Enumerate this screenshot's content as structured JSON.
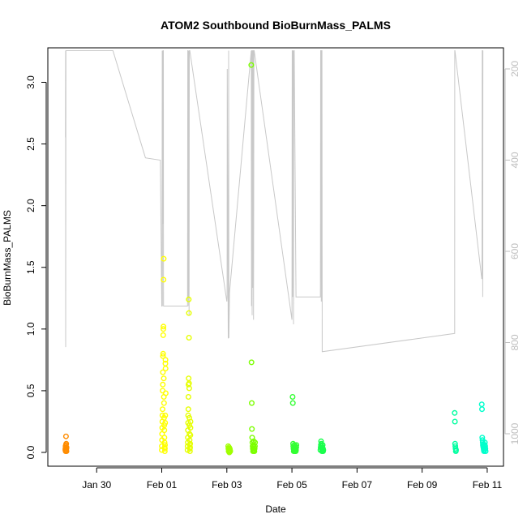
{
  "chart_data": {
    "type": "scatter",
    "title": "ATOM2 Southbound BioBurnMass_PALMS",
    "xlabel": "Date",
    "ylabel": "BioBurnMass_PALMS",
    "x_unit": "date",
    "xlim": [
      "2017-01-28T12:00",
      "2017-02-11T12:00"
    ],
    "ylim": [
      0,
      3.25
    ],
    "x_ticks": [
      {
        "date": "2017-01-30",
        "label": "Jan 30"
      },
      {
        "date": "2017-02-01",
        "label": "Feb 01"
      },
      {
        "date": "2017-02-03",
        "label": "Feb 03"
      },
      {
        "date": "2017-02-05",
        "label": "Feb 05"
      },
      {
        "date": "2017-02-07",
        "label": "Feb 07"
      },
      {
        "date": "2017-02-09",
        "label": "Feb 09"
      },
      {
        "date": "2017-02-11",
        "label": "Feb 11"
      }
    ],
    "y_ticks": [
      "0.0",
      "0.5",
      "1.0",
      "1.5",
      "2.0",
      "2.5",
      "3.0"
    ],
    "y2_ticks": [
      "200",
      "400",
      "600",
      "800",
      "1000"
    ],
    "y2lim": [
      160,
      1040
    ],
    "grid": false,
    "legend": "none",
    "colors": {
      "axis": "#000000",
      "right_axis": "#bebebe",
      "altitude_line": "#c8c8c8"
    },
    "series": [
      {
        "color": "#ff8c00",
        "x": [
          "2017-01-29T00:55",
          "2017-01-29T01:00",
          "2017-01-29T01:05",
          "2017-01-29T01:10",
          "2017-01-29T01:15",
          "2017-01-29T01:20",
          "2017-01-29T01:25",
          "2017-01-29T01:30",
          "2017-01-29T01:35",
          "2017-01-29T01:40",
          "2017-01-29T01:45",
          "2017-01-29T01:50"
        ],
        "y": [
          0.02,
          0.03,
          0.05,
          0.01,
          0.04,
          0.06,
          0.13,
          0.02,
          0.07,
          0.03,
          0.01,
          0.04
        ]
      },
      {
        "color": "#ffff00",
        "x": [
          "2017-02-01T00:00",
          "2017-02-01T00:05",
          "2017-02-01T00:10",
          "2017-02-01T00:15",
          "2017-02-01T00:20",
          "2017-02-01T00:25",
          "2017-02-01T00:30",
          "2017-02-01T00:35",
          "2017-02-01T00:40",
          "2017-02-01T00:45",
          "2017-02-01T00:50",
          "2017-02-01T00:55",
          "2017-02-01T01:00",
          "2017-02-01T01:05",
          "2017-02-01T01:10",
          "2017-02-01T01:15",
          "2017-02-01T01:20",
          "2017-02-01T01:25",
          "2017-02-01T01:30",
          "2017-02-01T01:35",
          "2017-02-01T01:40",
          "2017-02-01T01:45",
          "2017-02-01T01:50",
          "2017-02-01T01:55",
          "2017-02-01T02:00",
          "2017-02-01T02:05",
          "2017-02-01T02:10",
          "2017-02-01T02:15",
          "2017-02-01T02:20",
          "2017-02-01T02:25",
          "2017-02-01T02:30",
          "2017-02-01T02:35",
          "2017-02-01T02:40",
          "2017-02-01T02:45",
          "2017-02-01T02:50",
          "2017-02-01T02:55"
        ],
        "y": [
          0.02,
          0.05,
          0.1,
          0.15,
          0.2,
          0.25,
          0.3,
          0.35,
          0.5,
          0.55,
          0.65,
          0.78,
          0.8,
          0.95,
          1.0,
          1.02,
          1.4,
          1.57,
          0.6,
          0.45,
          0.4,
          0.28,
          0.22,
          0.18,
          0.12,
          0.08,
          0.04,
          0.01,
          0.03,
          0.06,
          0.24,
          0.3,
          0.72,
          0.75,
          0.68,
          0.48
        ]
      },
      {
        "color": "#e6ff00",
        "x": [
          "2017-02-01T19:00",
          "2017-02-01T19:05",
          "2017-02-01T19:10",
          "2017-02-01T19:15",
          "2017-02-01T19:20",
          "2017-02-01T19:25",
          "2017-02-01T19:30",
          "2017-02-01T19:35",
          "2017-02-01T19:40",
          "2017-02-01T19:45",
          "2017-02-01T19:50",
          "2017-02-01T19:55",
          "2017-02-01T20:00",
          "2017-02-01T20:05",
          "2017-02-01T20:10",
          "2017-02-01T20:15",
          "2017-02-01T20:20",
          "2017-02-01T20:25",
          "2017-02-01T20:30",
          "2017-02-01T20:35",
          "2017-02-01T20:40",
          "2017-02-01T20:45",
          "2017-02-01T20:50",
          "2017-02-01T20:55",
          "2017-02-01T21:00",
          "2017-02-01T21:05",
          "2017-02-01T21:10",
          "2017-02-01T21:15"
        ],
        "y": [
          0.02,
          0.05,
          0.08,
          0.12,
          0.18,
          0.24,
          0.3,
          0.35,
          0.45,
          0.55,
          0.6,
          1.24,
          1.13,
          0.93,
          0.56,
          0.52,
          0.28,
          0.22,
          0.15,
          0.1,
          0.06,
          0.03,
          0.01,
          0.04,
          0.07,
          0.14,
          0.2,
          0.25
        ]
      },
      {
        "color": "#a0ff00",
        "x": [
          "2017-02-03T01:00",
          "2017-02-03T01:10",
          "2017-02-03T01:20",
          "2017-02-03T01:30",
          "2017-02-03T01:40",
          "2017-02-03T01:50",
          "2017-02-03T02:00",
          "2017-02-03T02:10",
          "2017-02-03T02:20",
          "2017-02-03T02:30"
        ],
        "y": [
          0.05,
          0.03,
          0.01,
          0.02,
          0.04,
          0.0,
          0.01,
          0.03,
          0.02,
          0.01
        ]
      },
      {
        "color": "#7cff00",
        "x": [
          "2017-02-03T18:00",
          "2017-02-03T18:10",
          "2017-02-03T18:20",
          "2017-02-03T18:30",
          "2017-02-03T18:40",
          "2017-02-03T18:50",
          "2017-02-03T19:00",
          "2017-02-03T19:10",
          "2017-02-03T19:20",
          "2017-02-03T19:30",
          "2017-02-03T19:40",
          "2017-02-03T19:50",
          "2017-02-03T20:00",
          "2017-02-03T20:10",
          "2017-02-03T20:20",
          "2017-02-03T20:30",
          "2017-02-03T20:40",
          "2017-02-03T20:50"
        ],
        "y": [
          3.14,
          0.73,
          0.4,
          0.19,
          0.12,
          0.08,
          0.05,
          0.03,
          0.01,
          0.02,
          0.06,
          0.09,
          0.04,
          0.02,
          0.01,
          0.03,
          0.05,
          0.08
        ]
      },
      {
        "color": "#33ff33",
        "x": [
          "2017-02-05T00:30",
          "2017-02-05T00:40",
          "2017-02-05T00:50",
          "2017-02-05T01:00",
          "2017-02-05T01:10",
          "2017-02-05T01:20",
          "2017-02-05T01:30",
          "2017-02-05T01:40",
          "2017-02-05T01:50",
          "2017-02-05T02:00",
          "2017-02-05T02:10",
          "2017-02-05T02:20",
          "2017-02-05T02:30",
          "2017-02-05T02:40",
          "2017-02-05T02:50",
          "2017-02-05T03:00",
          "2017-02-05T03:10",
          "2017-02-05T03:20"
        ],
        "y": [
          0.45,
          0.4,
          0.07,
          0.05,
          0.03,
          0.01,
          0.02,
          0.04,
          0.06,
          0.03,
          0.01,
          0.02,
          0.05,
          0.03,
          0.01,
          0.02,
          0.04,
          0.06
        ]
      },
      {
        "color": "#1aff4d",
        "x": [
          "2017-02-05T21:00",
          "2017-02-05T21:10",
          "2017-02-05T21:20",
          "2017-02-05T21:30",
          "2017-02-05T21:40",
          "2017-02-05T21:50",
          "2017-02-05T22:00",
          "2017-02-05T22:10",
          "2017-02-05T22:20",
          "2017-02-05T22:30",
          "2017-02-05T22:40",
          "2017-02-05T22:50",
          "2017-02-05T23:00",
          "2017-02-05T23:10"
        ],
        "y": [
          0.02,
          0.04,
          0.06,
          0.09,
          0.07,
          0.05,
          0.03,
          0.01,
          0.02,
          0.04,
          0.06,
          0.03,
          0.01,
          0.02
        ]
      },
      {
        "color": "#00ffa0",
        "x": [
          "2017-02-10T00:00",
          "2017-02-10T00:10",
          "2017-02-10T00:20",
          "2017-02-10T00:30",
          "2017-02-10T00:40",
          "2017-02-10T00:50",
          "2017-02-10T01:00"
        ],
        "y": [
          0.32,
          0.25,
          0.07,
          0.05,
          0.03,
          0.01,
          0.02
        ]
      },
      {
        "color": "#00ffcc",
        "x": [
          "2017-02-10T20:00",
          "2017-02-10T20:10",
          "2017-02-10T20:20",
          "2017-02-10T20:30",
          "2017-02-10T20:40",
          "2017-02-10T20:50",
          "2017-02-10T21:00",
          "2017-02-10T21:10",
          "2017-02-10T21:20",
          "2017-02-10T21:30",
          "2017-02-10T21:40",
          "2017-02-10T21:50",
          "2017-02-10T22:00",
          "2017-02-10T22:10",
          "2017-02-10T22:20",
          "2017-02-10T22:30",
          "2017-02-10T22:40",
          "2017-02-10T22:50"
        ],
        "y": [
          0.39,
          0.35,
          0.12,
          0.1,
          0.08,
          0.06,
          0.05,
          0.04,
          0.03,
          0.02,
          0.01,
          0.02,
          0.04,
          0.06,
          0.08,
          0.05,
          0.03,
          0.01
        ]
      }
    ],
    "altitude_profile": {
      "y_axis": "right",
      "x": [
        "2017-01-29T01:00",
        "2017-01-29T01:05",
        "2017-01-29T01:10",
        "2017-01-29T01:20",
        "2017-01-29T01:30",
        "2017-01-29T01:40",
        "2017-01-29T01:50",
        "2017-01-29T02:00",
        "2017-01-30T12:00",
        "2017-01-31T12:00",
        "2017-01-31T23:00",
        "2017-02-01T00:00",
        "2017-02-01T00:10",
        "2017-02-01T00:20",
        "2017-02-01T00:30",
        "2017-02-01T00:40",
        "2017-02-01T00:50",
        "2017-02-01T01:00",
        "2017-02-01T01:10",
        "2017-02-01T01:20",
        "2017-02-01T01:30",
        "2017-02-01T01:40",
        "2017-02-01T01:50",
        "2017-02-01T02:00",
        "2017-02-01T02:10",
        "2017-02-01T19:00",
        "2017-02-01T19:10",
        "2017-02-01T19:20",
        "2017-02-01T19:30",
        "2017-02-01T19:40",
        "2017-02-01T19:50",
        "2017-02-01T20:00",
        "2017-02-01T20:10",
        "2017-02-01T20:20",
        "2017-02-01T20:30",
        "2017-02-01T20:40",
        "2017-02-03T00:00",
        "2017-02-03T00:10",
        "2017-02-03T00:20",
        "2017-02-03T01:00",
        "2017-02-03T01:10",
        "2017-02-03T01:20",
        "2017-02-03T01:30",
        "2017-02-03T02:00",
        "2017-02-03T18:00",
        "2017-02-03T18:10",
        "2017-02-03T18:20",
        "2017-02-03T18:30",
        "2017-02-03T18:40",
        "2017-02-03T18:50",
        "2017-02-03T19:00",
        "2017-02-03T19:10",
        "2017-02-03T19:20",
        "2017-02-03T19:30",
        "2017-02-03T19:40",
        "2017-02-03T20:00",
        "2017-02-03T20:10",
        "2017-02-05T00:00",
        "2017-02-05T00:10",
        "2017-02-05T00:20",
        "2017-02-05T00:30",
        "2017-02-05T00:40",
        "2017-02-05T00:50",
        "2017-02-05T01:00",
        "2017-02-05T01:10",
        "2017-02-05T01:20",
        "2017-02-05T01:30",
        "2017-02-05T01:40",
        "2017-02-05T03:00",
        "2017-02-05T21:00",
        "2017-02-05T21:10",
        "2017-02-05T21:20",
        "2017-02-05T21:30",
        "2017-02-05T21:40",
        "2017-02-05T21:50",
        "2017-02-05T22:00",
        "2017-02-05T22:10",
        "2017-02-05T22:20",
        "2017-02-10T00:00",
        "2017-02-10T00:05",
        "2017-02-10T00:10",
        "2017-02-10T20:00",
        "2017-02-10T20:10",
        "2017-02-10T20:20",
        "2017-02-10T20:30",
        "2017-02-10T20:40",
        "2017-02-10T20:50",
        "2017-02-10T21:00"
      ],
      "y": [
        350,
        160,
        810,
        160,
        160,
        160,
        160,
        160,
        160,
        395,
        400,
        720,
        720,
        160,
        720,
        160,
        540,
        160,
        160,
        720,
        720,
        720,
        720,
        720,
        720,
        720,
        160,
        160,
        700,
        160,
        720,
        160,
        740,
        160,
        160,
        160,
        710,
        700,
        200,
        790,
        790,
        160,
        790,
        690,
        160,
        720,
        160,
        160,
        740,
        160,
        680,
        160,
        160,
        160,
        750,
        160,
        160,
        750,
        160,
        160,
        700,
        160,
        680,
        160,
        760,
        160,
        160,
        160,
        700,
        700,
        160,
        160,
        160,
        710,
        160,
        160,
        160,
        820,
        780,
        160,
        160,
        660,
        660,
        160,
        160,
        700,
        160,
        160
      ]
    }
  }
}
